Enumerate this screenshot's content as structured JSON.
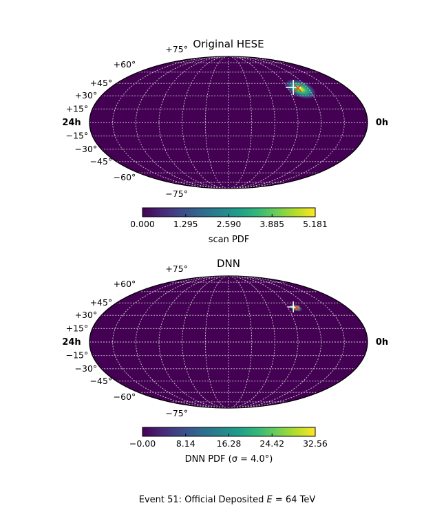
{
  "figure": {
    "caption_text": "Event 51:  Official Deposited ",
    "caption_symbol": "E",
    "caption_value": " = 64 TeV"
  },
  "chart_data": [
    {
      "type": "heatmap",
      "projection": "mollweide",
      "title": "Original HESE",
      "ra_labels": {
        "left": "24h",
        "right": "0h"
      },
      "lat_labels": [
        "+75°",
        "+60°",
        "+45°",
        "+30°",
        "+15°",
        "−15°",
        "−30°",
        "−45°",
        "−60°",
        "−75°"
      ],
      "grid": true,
      "colormap": "viridis",
      "colorbar": {
        "label": "scan PDF",
        "range": [
          0.0,
          5.181
        ],
        "ticks": [
          "0.000",
          "1.295",
          "2.590",
          "3.885",
          "5.181"
        ]
      },
      "peak": {
        "ra_hours": 4.8,
        "dec_deg": 38,
        "value": 5.181,
        "extent_deg": 10
      },
      "markers": [
        {
          "symbol": "cross",
          "color": "#ffffff",
          "ra_hours": 5.4,
          "dec_deg": 40
        },
        {
          "symbol": "x",
          "color": "#e8401c",
          "ra_hours": 5.0,
          "dec_deg": 39
        }
      ]
    },
    {
      "type": "heatmap",
      "projection": "mollweide",
      "title": "DNN",
      "ra_labels": {
        "left": "24h",
        "right": "0h"
      },
      "lat_labels": [
        "+75°",
        "+60°",
        "+45°",
        "+30°",
        "+15°",
        "−15°",
        "−30°",
        "−45°",
        "−60°",
        "−75°"
      ],
      "grid": true,
      "colormap": "viridis",
      "colorbar": {
        "label": "DNN PDF (σ = 4.0°)",
        "range": [
          0.0,
          32.56
        ],
        "ticks": [
          "−0.00",
          "8.14",
          "16.28",
          "24.42",
          "32.56"
        ]
      },
      "peak": {
        "ra_hours": 5.2,
        "dec_deg": 39,
        "value": 32.56,
        "extent_deg": 4
      },
      "markers": [
        {
          "symbol": "cross",
          "color": "#ffffff",
          "ra_hours": 5.4,
          "dec_deg": 40
        },
        {
          "symbol": "x",
          "color": "#e8401c",
          "ra_hours": 5.1,
          "dec_deg": 39
        }
      ]
    }
  ]
}
